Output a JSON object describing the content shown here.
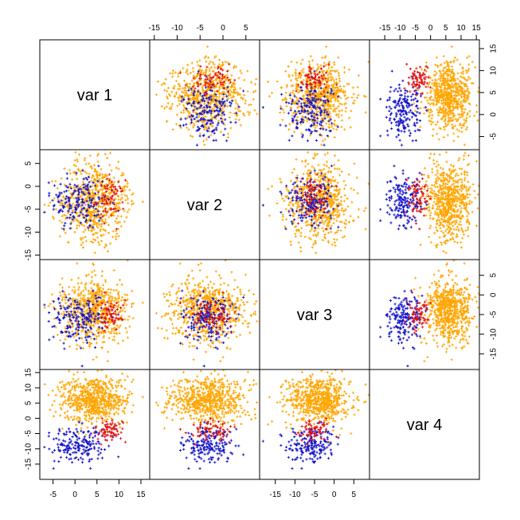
{
  "chart_data": {
    "type": "scatter",
    "title": "",
    "layout": "scatterplot-matrix",
    "variables": [
      "var 1",
      "var 2",
      "var 3",
      "var 4"
    ],
    "ranges": {
      "var 1": [
        -8,
        17
      ],
      "var 2": [
        -16,
        8
      ],
      "var 3": [
        -19,
        9
      ],
      "var 4": [
        -20,
        16
      ]
    },
    "ticks": {
      "var 1": [
        -5,
        0,
        5,
        10,
        15
      ],
      "var 2": [
        -15,
        -10,
        -5,
        0,
        5
      ],
      "var 3": [
        -15,
        -10,
        -5,
        0,
        5
      ],
      "var 4": [
        -15,
        -10,
        -5,
        0,
        5,
        10,
        15
      ]
    },
    "groups": [
      {
        "name": "blue cluster",
        "color": "#1010c8",
        "count": 180,
        "mean": {
          "var 1": 1,
          "var 2": -3,
          "var 3": -6,
          "var 4": -9
        },
        "sd": {
          "var 1": 3.2,
          "var 2": 3.2,
          "var 3": 3.0,
          "var 4": 3.2
        }
      },
      {
        "name": "red cluster",
        "color": "#e01010",
        "count": 70,
        "mean": {
          "var 1": 8,
          "var 2": -3,
          "var 3": -5,
          "var 4": -4
        },
        "sd": {
          "var 1": 1.6,
          "var 2": 2.2,
          "var 3": 2.0,
          "var 4": 1.8
        }
      },
      {
        "name": "orange cluster",
        "color": "#ffa500",
        "count": 650,
        "mean": {
          "var 1": 4.5,
          "var 2": -3,
          "var 3": -4,
          "var 4": 6
        },
        "sd": {
          "var 1": 3.8,
          "var 2": 4.2,
          "var 3": 4.0,
          "var 4": 3.8
        }
      }
    ]
  }
}
